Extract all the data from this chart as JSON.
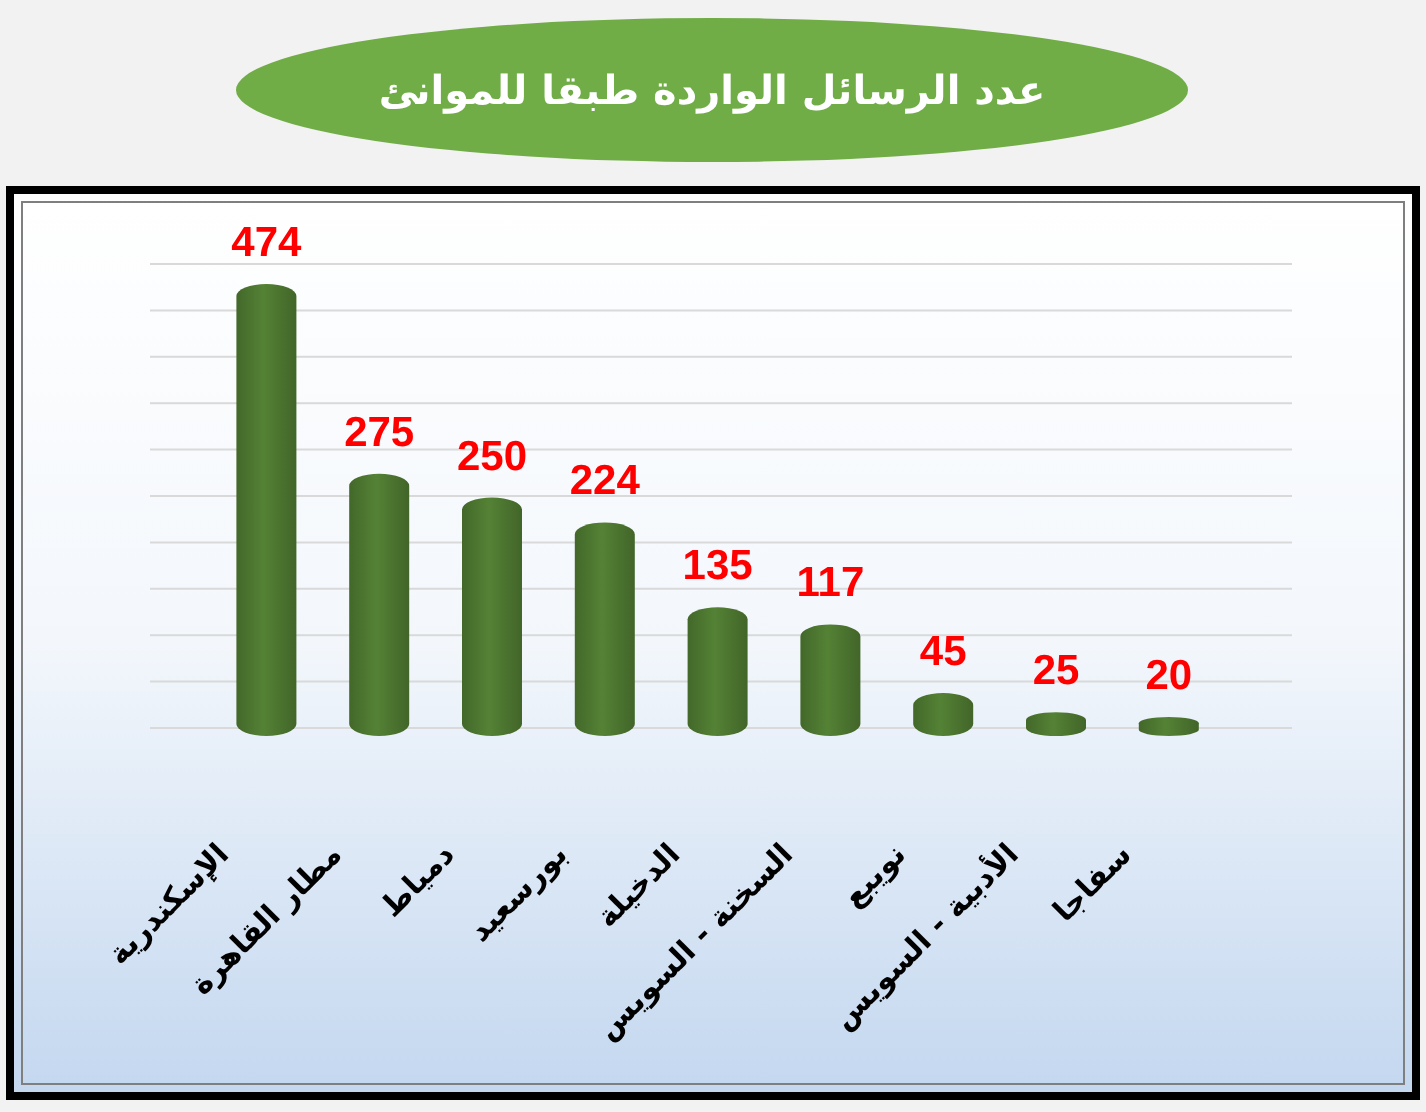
{
  "chart_data": {
    "type": "bar",
    "title": "عدد الرسائل الواردة طبقا للموانئ",
    "categories": [
      "الإسكندرية",
      "مطار القاهرة",
      "دمياط",
      "بورسعيد",
      "الدخيلة",
      "السخنة - السويس",
      "نويبع",
      "الأدبية - السويس",
      "سفاجا"
    ],
    "values": [
      474,
      275,
      250,
      224,
      135,
      117,
      45,
      25,
      20
    ],
    "color": "#548235",
    "data_labels": true,
    "grid": "y",
    "tick_labels": "x"
  }
}
